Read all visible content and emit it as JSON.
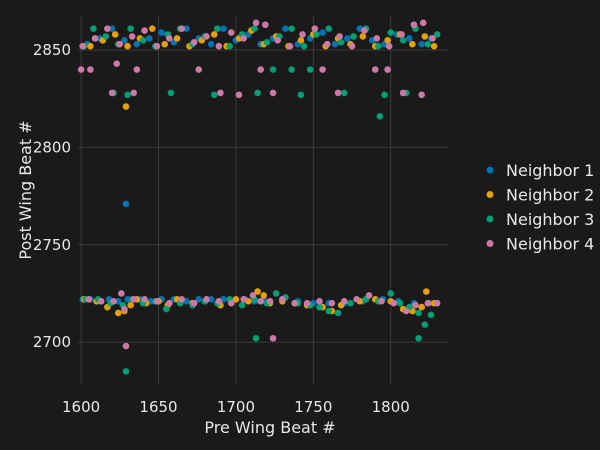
{
  "chart_data": {
    "type": "scatter",
    "title": "",
    "xlabel": "Pre Wing Beat #",
    "ylabel": "Post Wing Beat #",
    "xlim": [
      1598,
      1837
    ],
    "ylim": [
      2678,
      2868
    ],
    "xticks": [
      1600,
      1650,
      1700,
      1750,
      1800
    ],
    "yticks": [
      2700,
      2750,
      2800,
      2850
    ],
    "grid": true,
    "legend_position": "right",
    "series": [
      {
        "name": "Neighbor 1",
        "color": "#0072b2",
        "points": [
          [
            1601,
            2722
          ],
          [
            1606,
            2722
          ],
          [
            1612,
            2721
          ],
          [
            1618,
            2722
          ],
          [
            1624,
            2721
          ],
          [
            1630,
            2722
          ],
          [
            1638,
            2722
          ],
          [
            1645,
            2721
          ],
          [
            1652,
            2722
          ],
          [
            1660,
            2722
          ],
          [
            1668,
            2721
          ],
          [
            1676,
            2722
          ],
          [
            1684,
            2722
          ],
          [
            1692,
            2722
          ],
          [
            1700,
            2722
          ],
          [
            1706,
            2722
          ],
          [
            1712,
            2721
          ],
          [
            1718,
            2722
          ],
          [
            1730,
            2722
          ],
          [
            1740,
            2721
          ],
          [
            1750,
            2720
          ],
          [
            1760,
            2720
          ],
          [
            1770,
            2720
          ],
          [
            1782,
            2721
          ],
          [
            1795,
            2722
          ],
          [
            1805,
            2721
          ],
          [
            1815,
            2720
          ],
          [
            1825,
            2720
          ],
          [
            1629,
            2771
          ],
          [
            1604,
            2853
          ],
          [
            1612,
            2856
          ],
          [
            1620,
            2861
          ],
          [
            1628,
            2855
          ],
          [
            1636,
            2853
          ],
          [
            1644,
            2856
          ],
          [
            1652,
            2859
          ],
          [
            1660,
            2854
          ],
          [
            1668,
            2861
          ],
          [
            1676,
            2856
          ],
          [
            1684,
            2853
          ],
          [
            1692,
            2861
          ],
          [
            1700,
            2855
          ],
          [
            1708,
            2858
          ],
          [
            1716,
            2853
          ],
          [
            1724,
            2856
          ],
          [
            1732,
            2861
          ],
          [
            1740,
            2853
          ],
          [
            1748,
            2856
          ],
          [
            1756,
            2859
          ],
          [
            1764,
            2853
          ],
          [
            1772,
            2856
          ],
          [
            1780,
            2861
          ],
          [
            1788,
            2855
          ],
          [
            1796,
            2853
          ],
          [
            1804,
            2858
          ],
          [
            1812,
            2856
          ],
          [
            1820,
            2853
          ],
          [
            1826,
            2856
          ]
        ]
      },
      {
        "name": "Neighbor 2",
        "color": "#e69f00",
        "points": [
          [
            1602,
            2722
          ],
          [
            1610,
            2721
          ],
          [
            1617,
            2718
          ],
          [
            1624,
            2715
          ],
          [
            1628,
            2716
          ],
          [
            1632,
            2719
          ],
          [
            1636,
            2722
          ],
          [
            1642,
            2720
          ],
          [
            1650,
            2721
          ],
          [
            1656,
            2719
          ],
          [
            1662,
            2722
          ],
          [
            1672,
            2720
          ],
          [
            1680,
            2721
          ],
          [
            1690,
            2719
          ],
          [
            1700,
            2722
          ],
          [
            1708,
            2721
          ],
          [
            1714,
            2726
          ],
          [
            1718,
            2724
          ],
          [
            1722,
            2720
          ],
          [
            1730,
            2721
          ],
          [
            1738,
            2720
          ],
          [
            1746,
            2719
          ],
          [
            1756,
            2718
          ],
          [
            1762,
            2716
          ],
          [
            1768,
            2719
          ],
          [
            1780,
            2721
          ],
          [
            1790,
            2722
          ],
          [
            1800,
            2721
          ],
          [
            1808,
            2717
          ],
          [
            1814,
            2716
          ],
          [
            1820,
            2718
          ],
          [
            1823,
            2726
          ],
          [
            1828,
            2720
          ],
          [
            1629,
            2821
          ],
          [
            1606,
            2852
          ],
          [
            1614,
            2855
          ],
          [
            1622,
            2858
          ],
          [
            1630,
            2852
          ],
          [
            1638,
            2856
          ],
          [
            1646,
            2861
          ],
          [
            1654,
            2853
          ],
          [
            1662,
            2856
          ],
          [
            1670,
            2852
          ],
          [
            1678,
            2855
          ],
          [
            1686,
            2858
          ],
          [
            1694,
            2852
          ],
          [
            1702,
            2856
          ],
          [
            1710,
            2860
          ],
          [
            1718,
            2853
          ],
          [
            1726,
            2857
          ],
          [
            1734,
            2852
          ],
          [
            1742,
            2855
          ],
          [
            1750,
            2858
          ],
          [
            1758,
            2852
          ],
          [
            1766,
            2856
          ],
          [
            1774,
            2853
          ],
          [
            1782,
            2857
          ],
          [
            1790,
            2852
          ],
          [
            1798,
            2855
          ],
          [
            1806,
            2858
          ],
          [
            1814,
            2853
          ],
          [
            1822,
            2857
          ],
          [
            1828,
            2852
          ]
        ]
      },
      {
        "name": "Neighbor 3",
        "color": "#009e73",
        "points": [
          [
            1603,
            2722
          ],
          [
            1611,
            2722
          ],
          [
            1619,
            2720
          ],
          [
            1627,
            2719
          ],
          [
            1633,
            2722
          ],
          [
            1640,
            2720
          ],
          [
            1648,
            2721
          ],
          [
            1655,
            2717
          ],
          [
            1664,
            2720
          ],
          [
            1672,
            2719
          ],
          [
            1680,
            2721
          ],
          [
            1688,
            2720
          ],
          [
            1696,
            2722
          ],
          [
            1704,
            2719
          ],
          [
            1712,
            2722
          ],
          [
            1720,
            2720
          ],
          [
            1726,
            2725
          ],
          [
            1732,
            2723
          ],
          [
            1740,
            2720
          ],
          [
            1748,
            2719
          ],
          [
            1754,
            2718
          ],
          [
            1760,
            2716
          ],
          [
            1766,
            2715
          ],
          [
            1774,
            2720
          ],
          [
            1784,
            2722
          ],
          [
            1792,
            2721
          ],
          [
            1800,
            2725
          ],
          [
            1806,
            2720
          ],
          [
            1812,
            2718
          ],
          [
            1818,
            2715
          ],
          [
            1822,
            2709
          ],
          [
            1826,
            2714
          ],
          [
            1629,
            2685
          ],
          [
            1713,
            2702
          ],
          [
            1818,
            2702
          ],
          [
            1793,
            2816
          ],
          [
            1621,
            2828
          ],
          [
            1630,
            2827
          ],
          [
            1658,
            2828
          ],
          [
            1686,
            2827
          ],
          [
            1714,
            2828
          ],
          [
            1742,
            2827
          ],
          [
            1770,
            2828
          ],
          [
            1796,
            2827
          ],
          [
            1810,
            2828
          ],
          [
            1724,
            2840
          ],
          [
            1736,
            2840
          ],
          [
            1748,
            2840
          ],
          [
            1602,
            2852
          ],
          [
            1608,
            2861
          ],
          [
            1616,
            2857
          ],
          [
            1624,
            2853
          ],
          [
            1632,
            2861
          ],
          [
            1640,
            2855
          ],
          [
            1648,
            2852
          ],
          [
            1656,
            2858
          ],
          [
            1664,
            2861
          ],
          [
            1672,
            2853
          ],
          [
            1680,
            2857
          ],
          [
            1688,
            2861
          ],
          [
            1696,
            2852
          ],
          [
            1704,
            2858
          ],
          [
            1712,
            2861
          ],
          [
            1720,
            2854
          ],
          [
            1728,
            2857
          ],
          [
            1736,
            2861
          ],
          [
            1744,
            2852
          ],
          [
            1752,
            2858
          ],
          [
            1760,
            2861
          ],
          [
            1768,
            2854
          ],
          [
            1776,
            2857
          ],
          [
            1784,
            2861
          ],
          [
            1792,
            2852
          ],
          [
            1800,
            2859
          ],
          [
            1808,
            2855
          ],
          [
            1816,
            2861
          ],
          [
            1824,
            2853
          ],
          [
            1830,
            2858
          ]
        ]
      },
      {
        "name": "Neighbor 4",
        "color": "#cc79a7",
        "points": [
          [
            1605,
            2722
          ],
          [
            1613,
            2721
          ],
          [
            1621,
            2721
          ],
          [
            1626,
            2725
          ],
          [
            1628,
            2717
          ],
          [
            1634,
            2722
          ],
          [
            1641,
            2722
          ],
          [
            1649,
            2721
          ],
          [
            1657,
            2720
          ],
          [
            1665,
            2722
          ],
          [
            1673,
            2720
          ],
          [
            1681,
            2722
          ],
          [
            1689,
            2721
          ],
          [
            1697,
            2720
          ],
          [
            1705,
            2722
          ],
          [
            1711,
            2724
          ],
          [
            1716,
            2721
          ],
          [
            1722,
            2721
          ],
          [
            1730,
            2722
          ],
          [
            1738,
            2720
          ],
          [
            1746,
            2720
          ],
          [
            1754,
            2721
          ],
          [
            1762,
            2720
          ],
          [
            1770,
            2721
          ],
          [
            1778,
            2722
          ],
          [
            1786,
            2724
          ],
          [
            1794,
            2721
          ],
          [
            1802,
            2720
          ],
          [
            1810,
            2716
          ],
          [
            1816,
            2719
          ],
          [
            1824,
            2720
          ],
          [
            1830,
            2720
          ],
          [
            1629,
            2698
          ],
          [
            1724,
            2702
          ],
          [
            1623,
            2843
          ],
          [
            1600,
            2840
          ],
          [
            1606,
            2840
          ],
          [
            1636,
            2840
          ],
          [
            1676,
            2840
          ],
          [
            1716,
            2840
          ],
          [
            1756,
            2840
          ],
          [
            1790,
            2840
          ],
          [
            1798,
            2840
          ],
          [
            1620,
            2828
          ],
          [
            1634,
            2828
          ],
          [
            1690,
            2828
          ],
          [
            1702,
            2827
          ],
          [
            1724,
            2828
          ],
          [
            1766,
            2828
          ],
          [
            1808,
            2828
          ],
          [
            1820,
            2827
          ],
          [
            1601,
            2852
          ],
          [
            1609,
            2856
          ],
          [
            1617,
            2861
          ],
          [
            1625,
            2853
          ],
          [
            1633,
            2857
          ],
          [
            1641,
            2860
          ],
          [
            1649,
            2852
          ],
          [
            1657,
            2856
          ],
          [
            1665,
            2861
          ],
          [
            1673,
            2854
          ],
          [
            1681,
            2857
          ],
          [
            1689,
            2852
          ],
          [
            1697,
            2859
          ],
          [
            1705,
            2856
          ],
          [
            1713,
            2864
          ],
          [
            1719,
            2863
          ],
          [
            1727,
            2855
          ],
          [
            1735,
            2852
          ],
          [
            1743,
            2858
          ],
          [
            1751,
            2861
          ],
          [
            1759,
            2853
          ],
          [
            1767,
            2857
          ],
          [
            1775,
            2852
          ],
          [
            1783,
            2860
          ],
          [
            1791,
            2856
          ],
          [
            1799,
            2852
          ],
          [
            1807,
            2858
          ],
          [
            1815,
            2863
          ],
          [
            1821,
            2864
          ],
          [
            1827,
            2856
          ]
        ]
      }
    ]
  }
}
